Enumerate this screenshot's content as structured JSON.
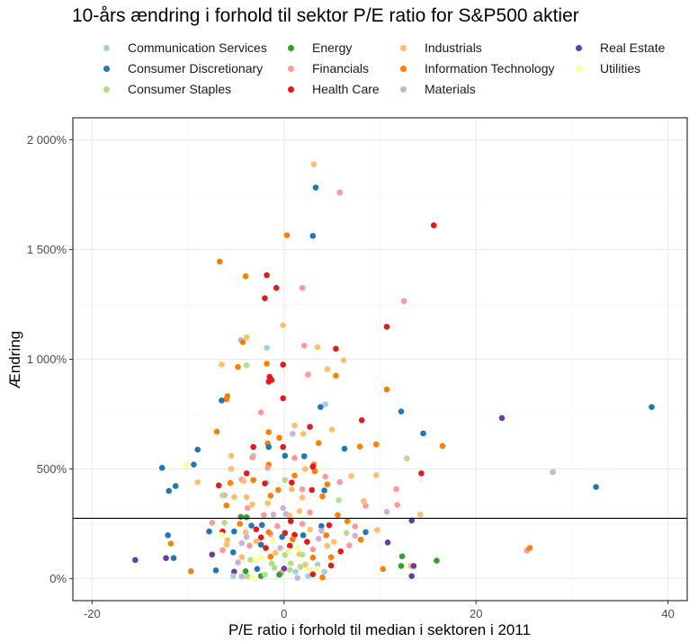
{
  "chart_data": {
    "type": "scatter",
    "title": "10-års ændring i forhold til sektor P/E ratio for S&P500 aktier",
    "xlabel": "P/E ratio i forhold til median i sektoren i 2011",
    "ylabel": "Ændring",
    "xlim": [
      -22,
      42
    ],
    "ylim": [
      -100,
      2100
    ],
    "x_ticks": [
      -20,
      0,
      20,
      40
    ],
    "x_tick_labels": [
      "-20",
      "0",
      "20",
      "40"
    ],
    "y_ticks": [
      0,
      500,
      1000,
      1500,
      2000
    ],
    "y_tick_labels": [
      "0%",
      "500%",
      "1 000%",
      "1 500%",
      "2 000%"
    ],
    "grid": true,
    "legend_position": "top",
    "hline": 275,
    "sectors": [
      {
        "name": "Communication Services",
        "color": "#A6CEE3"
      },
      {
        "name": "Consumer Discretionary",
        "color": "#1F78B4"
      },
      {
        "name": "Consumer Staples",
        "color": "#B2DF8A"
      },
      {
        "name": "Energy",
        "color": "#33A02C"
      },
      {
        "name": "Financials",
        "color": "#FB9A99"
      },
      {
        "name": "Health Care",
        "color": "#E31A1C"
      },
      {
        "name": "Industrials",
        "color": "#FDBF6F"
      },
      {
        "name": "Information Technology",
        "color": "#FF7F00"
      },
      {
        "name": "Materials",
        "color": "#CAB2D6"
      },
      {
        "name": "Real Estate",
        "color": "#6A3D9A"
      },
      {
        "name": "Utilities",
        "color": "#FFFF99"
      }
    ],
    "points": [
      [
        3.1,
        1888,
        6
      ],
      [
        3.3,
        1782,
        1
      ],
      [
        5.8,
        1760,
        4
      ],
      [
        3.0,
        1562,
        1
      ],
      [
        15.6,
        1610,
        5
      ],
      [
        0.3,
        1565,
        7
      ],
      [
        -6.7,
        1445,
        7
      ],
      [
        -4.0,
        1378,
        7
      ],
      [
        -1.8,
        1383,
        5
      ],
      [
        -2.0,
        1278,
        5
      ],
      [
        -0.8,
        1325,
        5
      ],
      [
        1.9,
        1325,
        4
      ],
      [
        12.5,
        1265,
        4
      ],
      [
        10.7,
        1148,
        5
      ],
      [
        -0.1,
        1155,
        6
      ],
      [
        -3.9,
        1100,
        6
      ],
      [
        -4.5,
        1088,
        8
      ],
      [
        -1.8,
        1052,
        0
      ],
      [
        2.1,
        1062,
        4
      ],
      [
        3.5,
        1055,
        6
      ],
      [
        5.4,
        1048,
        5
      ],
      [
        -4.3,
        1078,
        7
      ],
      [
        -6.5,
        975,
        6
      ],
      [
        -3.9,
        972,
        2
      ],
      [
        -1.8,
        980,
        7
      ],
      [
        -4.8,
        965,
        7
      ],
      [
        -0.1,
        975,
        5
      ],
      [
        -1.5,
        920,
        5
      ],
      [
        2.5,
        930,
        4
      ],
      [
        -1.6,
        898,
        5
      ],
      [
        -1.3,
        905,
        5
      ],
      [
        4.5,
        955,
        6
      ],
      [
        6.2,
        995,
        6
      ],
      [
        5.4,
        925,
        7
      ],
      [
        10.7,
        862,
        7
      ],
      [
        -0.1,
        822,
        5
      ],
      [
        -6.0,
        818,
        7
      ],
      [
        -6.5,
        812,
        1
      ],
      [
        -5.9,
        832,
        7
      ],
      [
        3.8,
        782,
        1
      ],
      [
        4.3,
        795,
        0
      ],
      [
        -2.4,
        758,
        4
      ],
      [
        12.2,
        762,
        1
      ],
      [
        8.1,
        722,
        5
      ],
      [
        1.1,
        698,
        6
      ],
      [
        2.7,
        692,
        5
      ],
      [
        5.0,
        680,
        6
      ],
      [
        -7.0,
        670,
        7
      ],
      [
        -1.6,
        668,
        7
      ],
      [
        0.9,
        660,
        8
      ],
      [
        2.0,
        660,
        6
      ],
      [
        -0.5,
        642,
        7
      ],
      [
        14.5,
        662,
        1
      ],
      [
        9.6,
        612,
        7
      ],
      [
        3.6,
        618,
        7
      ],
      [
        -1.7,
        616,
        7
      ],
      [
        -3.2,
        600,
        5
      ],
      [
        -0.1,
        600,
        5
      ],
      [
        -1.6,
        600,
        1
      ],
      [
        16.5,
        605,
        7
      ],
      [
        -9.0,
        588,
        1
      ],
      [
        6.3,
        592,
        1
      ],
      [
        7.9,
        602,
        7
      ],
      [
        -5.5,
        560,
        6
      ],
      [
        -3.2,
        560,
        0
      ],
      [
        -3.3,
        552,
        4
      ],
      [
        0.1,
        560,
        1
      ],
      [
        2.1,
        558,
        1
      ],
      [
        1.1,
        550,
        4
      ],
      [
        -1.6,
        520,
        7
      ],
      [
        3.1,
        520,
        7
      ],
      [
        12.8,
        548,
        2
      ],
      [
        -12.7,
        505,
        1
      ],
      [
        -9.4,
        520,
        1
      ],
      [
        -10.2,
        518,
        10
      ],
      [
        -5.5,
        500,
        6
      ],
      [
        -1.7,
        505,
        4
      ],
      [
        2.2,
        500,
        6
      ],
      [
        3.2,
        490,
        7
      ],
      [
        3.0,
        510,
        5
      ],
      [
        -3.9,
        480,
        5
      ],
      [
        1.1,
        470,
        7
      ],
      [
        4.3,
        465,
        4
      ],
      [
        7.0,
        468,
        6
      ],
      [
        9.6,
        472,
        6
      ],
      [
        14.3,
        480,
        5
      ],
      [
        28.0,
        485,
        8
      ],
      [
        -12.0,
        400,
        1
      ],
      [
        -11.3,
        422,
        1
      ],
      [
        -9.0,
        440,
        6
      ],
      [
        -6.8,
        425,
        5
      ],
      [
        -5.6,
        436,
        7
      ],
      [
        -4.4,
        452,
        4
      ],
      [
        -4.2,
        445,
        6
      ],
      [
        -3.2,
        450,
        7
      ],
      [
        -1.8,
        438,
        0
      ],
      [
        -2.0,
        434,
        5
      ],
      [
        0.1,
        450,
        2
      ],
      [
        0.8,
        438,
        5
      ],
      [
        4.5,
        430,
        7
      ],
      [
        5.8,
        440,
        4
      ],
      [
        -6.2,
        380,
        4
      ],
      [
        -6.4,
        380,
        2
      ],
      [
        -5.2,
        372,
        6
      ],
      [
        -3.9,
        372,
        6
      ],
      [
        -1.4,
        378,
        7
      ],
      [
        -0.6,
        404,
        7
      ],
      [
        0.8,
        408,
        6
      ],
      [
        1.9,
        408,
        4
      ],
      [
        2.9,
        404,
        5
      ],
      [
        4.2,
        402,
        1
      ],
      [
        11.7,
        408,
        4
      ],
      [
        32.5,
        418,
        1
      ],
      [
        -6.0,
        334,
        7
      ],
      [
        -3.3,
        338,
        6
      ],
      [
        -1.7,
        344,
        6
      ],
      [
        -0.1,
        322,
        8
      ],
      [
        -3.8,
        322,
        4
      ],
      [
        1.9,
        370,
        6
      ],
      [
        5.7,
        358,
        2
      ],
      [
        8.3,
        354,
        6
      ],
      [
        4.0,
        375,
        7
      ],
      [
        8.5,
        332,
        4
      ],
      [
        11.8,
        336,
        4
      ],
      [
        14.2,
        292,
        6
      ],
      [
        10.7,
        305,
        8
      ],
      [
        13.3,
        265,
        9
      ],
      [
        -4.5,
        282,
        3
      ],
      [
        -3.9,
        280,
        3
      ],
      [
        -2.1,
        290,
        4
      ],
      [
        -1.1,
        292,
        8
      ],
      [
        0.2,
        295,
        8
      ],
      [
        0.6,
        287,
        6
      ],
      [
        1.6,
        308,
        6
      ],
      [
        2.7,
        302,
        4
      ],
      [
        5.6,
        290,
        7
      ],
      [
        22.7,
        732,
        9
      ],
      [
        38.3,
        782,
        1
      ],
      [
        -7.5,
        255,
        4
      ],
      [
        -6.2,
        255,
        2
      ],
      [
        -4.6,
        250,
        7
      ],
      [
        -3.4,
        242,
        1
      ],
      [
        -2.3,
        245,
        1
      ],
      [
        -0.7,
        240,
        4
      ],
      [
        0.7,
        262,
        5
      ],
      [
        1.9,
        250,
        4
      ],
      [
        3.9,
        240,
        1
      ],
      [
        4.7,
        244,
        5
      ],
      [
        6.6,
        262,
        7
      ],
      [
        7.4,
        238,
        4
      ],
      [
        9.7,
        222,
        6
      ],
      [
        8.5,
        212,
        1
      ],
      [
        -7.8,
        215,
        1
      ],
      [
        -6.4,
        215,
        5
      ],
      [
        -5.2,
        215,
        1
      ],
      [
        -4.0,
        212,
        6
      ],
      [
        -2.9,
        225,
        5
      ],
      [
        -1.4,
        204,
        4
      ],
      [
        0.1,
        208,
        5
      ],
      [
        1.1,
        200,
        5
      ],
      [
        2.0,
        198,
        1
      ],
      [
        3.9,
        218,
        8
      ],
      [
        4.4,
        198,
        7
      ],
      [
        6.5,
        208,
        2
      ],
      [
        7.4,
        196,
        8
      ],
      [
        -6.5,
        200,
        10
      ],
      [
        -3.9,
        190,
        8
      ],
      [
        -2.4,
        188,
        5
      ],
      [
        -1.2,
        176,
        10
      ],
      [
        0.9,
        180,
        7
      ],
      [
        2.4,
        168,
        5
      ],
      [
        3.6,
        182,
        8
      ],
      [
        5.2,
        168,
        6
      ],
      [
        6.8,
        152,
        4
      ],
      [
        8.0,
        178,
        7
      ],
      [
        10.8,
        165,
        9
      ],
      [
        -6.0,
        155,
        6
      ],
      [
        -4.4,
        162,
        8
      ],
      [
        -3.6,
        150,
        4
      ],
      [
        -2.4,
        155,
        1
      ],
      [
        -1.9,
        140,
        5
      ],
      [
        -0.4,
        140,
        8
      ],
      [
        0.6,
        150,
        5
      ],
      [
        1.4,
        140,
        10
      ],
      [
        3.0,
        134,
        4
      ],
      [
        5.9,
        124,
        5
      ],
      [
        25.3,
        128,
        4
      ],
      [
        25.6,
        140,
        7
      ],
      [
        -12.1,
        198,
        1
      ],
      [
        -11.8,
        160,
        7
      ],
      [
        -6.4,
        130,
        4
      ],
      [
        -5.3,
        120,
        1
      ],
      [
        -4.4,
        98,
        6
      ],
      [
        -3.5,
        86,
        2
      ],
      [
        -2.4,
        96,
        10
      ],
      [
        -1.4,
        100,
        7
      ],
      [
        0.1,
        108,
        2
      ],
      [
        1.6,
        112,
        6
      ],
      [
        3.0,
        96,
        7
      ],
      [
        4.9,
        98,
        7
      ],
      [
        12.3,
        102,
        3
      ],
      [
        15.9,
        82,
        3
      ],
      [
        -15.5,
        85,
        9
      ],
      [
        -12.3,
        94,
        9
      ],
      [
        -11.5,
        94,
        1
      ],
      [
        -7.5,
        110,
        9
      ],
      [
        -4.8,
        74,
        8
      ],
      [
        -3.0,
        84,
        10
      ],
      [
        -1.3,
        70,
        2
      ],
      [
        0.7,
        70,
        2
      ],
      [
        2.2,
        64,
        6
      ],
      [
        3.5,
        64,
        0
      ],
      [
        4.9,
        60,
        5
      ],
      [
        12.2,
        58,
        3
      ],
      [
        13.2,
        58,
        6
      ],
      [
        13.5,
        58,
        9
      ],
      [
        -9.7,
        34,
        7
      ],
      [
        -7.1,
        38,
        1
      ],
      [
        -5.2,
        32,
        9
      ],
      [
        -4.0,
        34,
        3
      ],
      [
        -2.8,
        44,
        1
      ],
      [
        -1.0,
        50,
        2
      ],
      [
        0.0,
        46,
        9
      ],
      [
        1.7,
        54,
        2
      ],
      [
        2.6,
        44,
        10
      ],
      [
        3.5,
        44,
        10
      ],
      [
        4.2,
        32,
        0
      ],
      [
        10.3,
        44,
        7
      ],
      [
        -5.3,
        12,
        0
      ],
      [
        -4.4,
        10,
        8
      ],
      [
        -3.8,
        10,
        2
      ],
      [
        -2.4,
        12,
        3
      ],
      [
        -0.3,
        26,
        4
      ],
      [
        1.4,
        4,
        8
      ],
      [
        2.5,
        12,
        0
      ],
      [
        4.0,
        6,
        7
      ],
      [
        13.3,
        12,
        9
      ],
      [
        -0.5,
        18,
        3
      ],
      [
        0.6,
        40,
        2
      ],
      [
        -3.3,
        6,
        10
      ],
      [
        -2.0,
        18,
        2
      ],
      [
        1.2,
        32,
        0
      ],
      [
        3.0,
        20,
        5
      ],
      [
        -1.6,
        212,
        7
      ],
      [
        -0.2,
        190,
        1
      ],
      [
        2.7,
        224,
        6
      ],
      [
        0.4,
        128,
        10
      ],
      [
        1.9,
        110,
        2
      ],
      [
        -0.9,
        118,
        6
      ],
      [
        -5.9,
        176,
        6
      ],
      [
        -2.9,
        170,
        6
      ],
      [
        4.5,
        150,
        6
      ]
    ]
  }
}
